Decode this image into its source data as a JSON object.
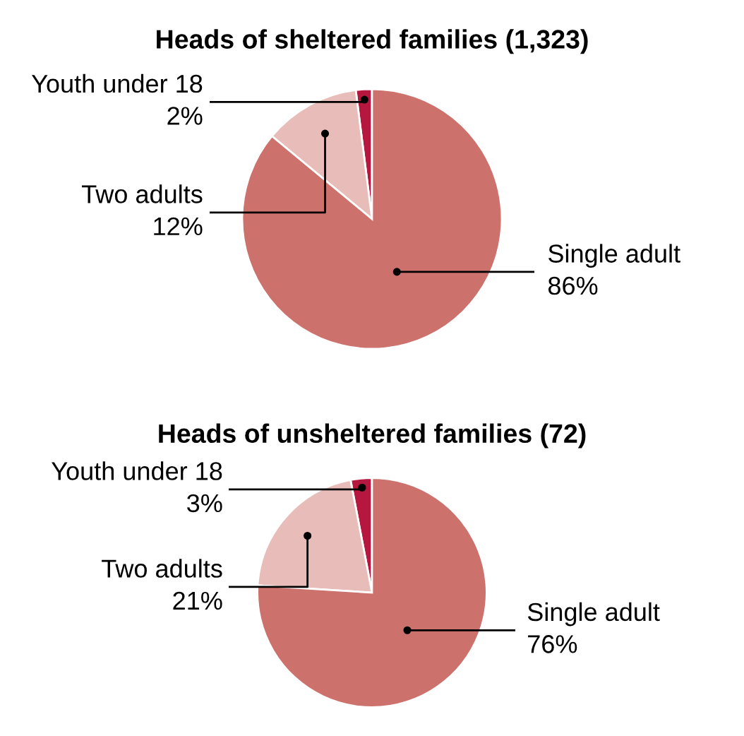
{
  "chart_data": [
    {
      "type": "pie",
      "title": "Heads of sheltered families (1,323)",
      "categories": [
        "Youth under 18",
        "Two adults",
        "Single adult"
      ],
      "values": [
        2,
        12,
        86
      ],
      "value_labels": [
        "2%",
        "12%",
        "86%"
      ],
      "colors": [
        "#b5173f",
        "#e8bdb9",
        "#cc716c"
      ]
    },
    {
      "type": "pie",
      "title": "Heads of unsheltered families (72)",
      "categories": [
        "Youth under 18",
        "Two adults",
        "Single adult"
      ],
      "values": [
        3,
        21,
        76
      ],
      "value_labels": [
        "3%",
        "21%",
        "76%"
      ],
      "colors": [
        "#b5173f",
        "#e8bdb9",
        "#cc716c"
      ]
    }
  ]
}
